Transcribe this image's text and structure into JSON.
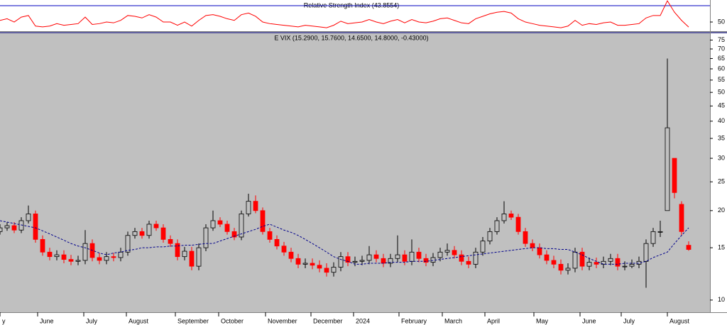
{
  "chart_data": [
    {
      "type": "line",
      "title": "Relative Strength Index (43.8554)",
      "color": "#ff0000",
      "level": 70,
      "level_color": "#0000c0",
      "x": [
        0,
        1,
        2,
        3,
        4,
        5,
        6,
        7,
        8,
        9,
        10,
        11,
        12,
        13,
        14,
        15,
        16,
        17,
        18,
        19,
        20,
        21,
        22,
        23,
        24,
        25,
        26,
        27,
        28,
        29,
        30,
        31,
        32,
        33,
        34,
        35,
        36,
        37,
        38,
        39,
        40,
        41,
        42,
        43,
        44,
        45,
        46,
        47,
        48,
        49,
        50,
        51,
        52,
        53,
        54,
        55,
        56,
        57,
        58,
        59,
        60,
        61,
        62,
        63,
        64,
        65,
        66,
        67,
        68,
        69,
        70,
        71,
        72,
        73,
        74,
        75,
        76,
        77,
        78,
        79,
        80,
        81,
        82,
        83,
        84,
        85,
        86,
        87,
        88,
        89,
        90,
        91,
        92,
        93,
        94,
        95,
        96,
        97
      ],
      "values": [
        52,
        54,
        50,
        56,
        58,
        45,
        44,
        45,
        48,
        46,
        47,
        48,
        56,
        47,
        48,
        50,
        49,
        52,
        58,
        57,
        55,
        59,
        56,
        50,
        50,
        46,
        50,
        45,
        52,
        58,
        59,
        57,
        54,
        52,
        59,
        61,
        57,
        50,
        48,
        47,
        46,
        45,
        44,
        46,
        45,
        44,
        43,
        46,
        51,
        48,
        49,
        50,
        53,
        50,
        48,
        51,
        53,
        49,
        53,
        50,
        49,
        51,
        54,
        55,
        52,
        49,
        48,
        54,
        57,
        60,
        62,
        63,
        61,
        54,
        50,
        48,
        46,
        45,
        44,
        43,
        45,
        52,
        46,
        48,
        47,
        49,
        50,
        46,
        46,
        47,
        48,
        55,
        58,
        58,
        76,
        62,
        52,
        43.8554
      ],
      "xlim": [
        0,
        100
      ],
      "ylim": [
        38.7,
        77
      ],
      "yticks": [
        50
      ]
    },
    {
      "type": "candlestick",
      "title": "E VIX (15.2900, 15.7600, 14.6500, 14.8000, -0.43000)",
      "log_scale": true,
      "up_color": "#c0c0c0",
      "down_color": "#ff0000",
      "outline_color": "#000000",
      "x": [
        0,
        1,
        2,
        3,
        4,
        5,
        6,
        7,
        8,
        9,
        10,
        11,
        12,
        13,
        14,
        15,
        16,
        17,
        18,
        19,
        20,
        21,
        22,
        23,
        24,
        25,
        26,
        27,
        28,
        29,
        30,
        31,
        32,
        33,
        34,
        35,
        36,
        37,
        38,
        39,
        40,
        41,
        42,
        43,
        44,
        45,
        46,
        47,
        48,
        49,
        50,
        51,
        52,
        53,
        54,
        55,
        56,
        57,
        58,
        59,
        60,
        61,
        62,
        63,
        64,
        65,
        66,
        67,
        68,
        69,
        70,
        71,
        72,
        73,
        74,
        75,
        76,
        77,
        78,
        79,
        80,
        81,
        82,
        83,
        84,
        85,
        86,
        87,
        88,
        89,
        90,
        91,
        92,
        93,
        94,
        95,
        96,
        97
      ],
      "ohlc": [
        [
          17,
          18,
          16.6,
          17.5
        ],
        [
          17.5,
          18.3,
          17.1,
          17.8
        ],
        [
          17.8,
          18.3,
          16.8,
          17.2
        ],
        [
          17.2,
          19,
          16.8,
          18.5
        ],
        [
          18.5,
          20.8,
          18.1,
          19.5
        ],
        [
          19.5,
          20,
          15.6,
          16
        ],
        [
          16,
          16.5,
          14.1,
          14.5
        ],
        [
          14.5,
          15,
          13.6,
          14
        ],
        [
          14,
          14.7,
          13.6,
          14.2
        ],
        [
          14.2,
          14.7,
          13.3,
          13.7
        ],
        [
          13.7,
          14.2,
          13.1,
          13.5
        ],
        [
          13.5,
          14.1,
          13.1,
          13.6
        ],
        [
          13.6,
          17.2,
          13.2,
          15.5
        ],
        [
          15.5,
          16,
          13.5,
          13.9
        ],
        [
          13.9,
          14.4,
          13.2,
          13.6
        ],
        [
          13.6,
          14.5,
          13.2,
          14
        ],
        [
          14,
          14.4,
          13.5,
          13.9
        ],
        [
          13.9,
          15,
          13.5,
          14.5
        ],
        [
          14.5,
          17,
          14.1,
          16.5
        ],
        [
          16.5,
          17.5,
          16.1,
          17
        ],
        [
          17,
          17.5,
          16.1,
          16.5
        ],
        [
          16.5,
          18.5,
          16.1,
          18
        ],
        [
          18,
          18.5,
          17.1,
          17.5
        ],
        [
          17.5,
          18,
          15.6,
          16
        ],
        [
          16,
          16.5,
          15.1,
          15.5
        ],
        [
          15.5,
          16,
          13.6,
          14
        ],
        [
          14,
          15.1,
          13.6,
          14.6
        ],
        [
          14.6,
          15.1,
          12.6,
          13
        ],
        [
          13,
          15.5,
          12.6,
          15
        ],
        [
          15,
          18,
          14.6,
          17.5
        ],
        [
          17.5,
          20,
          17.1,
          18.5
        ],
        [
          18.5,
          19,
          17.6,
          18
        ],
        [
          18,
          18.5,
          16.6,
          17
        ],
        [
          17,
          17.5,
          15.9,
          16.3
        ],
        [
          16.3,
          20,
          15.9,
          19.5
        ],
        [
          19.5,
          22.8,
          19.1,
          21.5
        ],
        [
          21.5,
          22.5,
          19.6,
          20
        ],
        [
          20,
          20.5,
          16.6,
          17
        ],
        [
          17,
          17.5,
          15.6,
          16
        ],
        [
          16,
          16.5,
          14.8,
          15.2
        ],
        [
          15.2,
          15.7,
          14.1,
          14.5
        ],
        [
          14.5,
          15,
          13.4,
          13.8
        ],
        [
          13.8,
          14.3,
          12.8,
          13.2
        ],
        [
          13.2,
          13.8,
          12.8,
          13.3
        ],
        [
          13.3,
          13.8,
          12.7,
          13.1
        ],
        [
          13.1,
          13.6,
          12.4,
          12.8
        ],
        [
          12.8,
          13.3,
          12,
          12.4
        ],
        [
          12.4,
          13.4,
          12,
          12.9
        ],
        [
          12.9,
          14.5,
          12.5,
          14
        ],
        [
          14,
          14.5,
          13,
          13.4
        ],
        [
          13.4,
          14,
          13,
          13.5
        ],
        [
          13.5,
          14.1,
          13.1,
          13.6
        ],
        [
          13.6,
          15.2,
          13.2,
          14.2
        ],
        [
          14.2,
          14.7,
          13.4,
          13.8
        ],
        [
          13.8,
          14.3,
          12.9,
          13.3
        ],
        [
          13.3,
          14.3,
          12.9,
          13.8
        ],
        [
          13.8,
          16.5,
          13.4,
          14.2
        ],
        [
          14.2,
          14.7,
          13.1,
          13.5
        ],
        [
          13.5,
          16,
          13.1,
          14.5
        ],
        [
          14.5,
          15,
          13.4,
          13.8
        ],
        [
          13.8,
          14.3,
          13,
          13.4
        ],
        [
          13.4,
          14.4,
          13,
          13.9
        ],
        [
          13.9,
          15,
          13.5,
          14.5
        ],
        [
          14.5,
          15.5,
          14.1,
          14.7
        ],
        [
          14.7,
          15.2,
          13.8,
          14.2
        ],
        [
          14.2,
          14.7,
          13.1,
          13.5
        ],
        [
          13.5,
          14,
          12.8,
          13.2
        ],
        [
          13.2,
          15,
          12.8,
          14.5
        ],
        [
          14.5,
          16.3,
          14.1,
          15.8
        ],
        [
          15.8,
          17.5,
          15.4,
          17
        ],
        [
          17,
          19,
          16.6,
          18.5
        ],
        [
          18.5,
          21.5,
          18.1,
          19.5
        ],
        [
          19.5,
          20,
          18.6,
          19
        ],
        [
          19,
          19.5,
          16.6,
          17
        ],
        [
          17,
          17.5,
          15.1,
          15.5
        ],
        [
          15.5,
          16,
          14.6,
          15
        ],
        [
          15,
          15.5,
          13.8,
          14.2
        ],
        [
          14.2,
          14.7,
          13.2,
          13.6
        ],
        [
          13.6,
          14.1,
          12.8,
          13.2
        ],
        [
          13.2,
          13.7,
          12.2,
          12.6
        ],
        [
          12.6,
          13.3,
          12.2,
          12.8
        ],
        [
          12.8,
          15,
          12.4,
          14.5
        ],
        [
          14.5,
          15,
          12.6,
          13
        ],
        [
          13,
          13.9,
          12.6,
          13.4
        ],
        [
          13.4,
          13.9,
          12.8,
          13.2
        ],
        [
          13.2,
          14,
          12.8,
          13.5
        ],
        [
          13.5,
          14.3,
          13.1,
          13.8
        ],
        [
          13.8,
          14.3,
          12.6,
          13
        ],
        [
          13,
          13.5,
          12.6,
          13
        ],
        [
          13,
          13.7,
          12.8,
          13.2
        ],
        [
          13.2,
          14,
          12.8,
          13.5
        ],
        [
          13.5,
          16,
          11,
          15.5
        ],
        [
          15.5,
          17.5,
          15.1,
          17
        ],
        [
          17,
          18.5,
          16.3,
          17
        ],
        [
          20,
          65,
          20,
          38
        ],
        [
          30,
          30,
          22,
          23
        ],
        [
          21,
          21.5,
          16.5,
          17
        ],
        [
          15.29,
          15.76,
          14.65,
          14.8
        ]
      ],
      "moving_average": {
        "color": "#00008b",
        "values": [
          18.5,
          18.3,
          18.1,
          17.9,
          17.7,
          17.5,
          17.1,
          16.7,
          16.3,
          15.9,
          15.5,
          15.2,
          15,
          14.7,
          14.4,
          14.2,
          14.4,
          14.5,
          14.7,
          14.8,
          15,
          15,
          15.1,
          15.1,
          15.2,
          15.2,
          15.3,
          15.3,
          15.4,
          15.5,
          15.5,
          15.8,
          16.1,
          16.4,
          16.7,
          17,
          17.3,
          17.7,
          18,
          17.6,
          17.2,
          16.9,
          16.5,
          16,
          15.5,
          15,
          14.5,
          14,
          13.7,
          13.5,
          13.2,
          13.2,
          13.3,
          13.3,
          13.3,
          13.4,
          13.4,
          13.4,
          13.5,
          13.5,
          13.5,
          13.6,
          13.7,
          13.8,
          13.9,
          14,
          14.1,
          14.2,
          14.3,
          14.4,
          14.5,
          14.6,
          14.7,
          14.8,
          14.9,
          15,
          15,
          14.9,
          14.9,
          14.8,
          14.8,
          14.5,
          14.2,
          13.8,
          13.5,
          13.2,
          13.2,
          13.2,
          13.3,
          13.3,
          13.3,
          13.5,
          13.9,
          14.2,
          14.5,
          15.5,
          16.5,
          17.5
        ]
      },
      "xlim": [
        0,
        100
      ],
      "ylim": [
        9.1,
        79
      ],
      "yticks": [
        10,
        15,
        20,
        25,
        30,
        35,
        40,
        45,
        50,
        55,
        60,
        65,
        70,
        75
      ],
      "xticks": [
        {
          "value": 0,
          "label": "y"
        },
        {
          "value": 5.3,
          "label": "June"
        },
        {
          "value": 11.8,
          "label": "July"
        },
        {
          "value": 17.8,
          "label": "August"
        },
        {
          "value": 24.7,
          "label": "September"
        },
        {
          "value": 30.8,
          "label": "October"
        },
        {
          "value": 37.4,
          "label": "November"
        },
        {
          "value": 43.8,
          "label": "December"
        },
        {
          "value": 49.8,
          "label": "2024"
        },
        {
          "value": 56.2,
          "label": "February"
        },
        {
          "value": 62.3,
          "label": "March"
        },
        {
          "value": 68.3,
          "label": "April"
        },
        {
          "value": 75.2,
          "label": "May"
        },
        {
          "value": 81.7,
          "label": "June"
        },
        {
          "value": 87.5,
          "label": "July"
        },
        {
          "value": 94.0,
          "label": "August"
        }
      ]
    }
  ]
}
